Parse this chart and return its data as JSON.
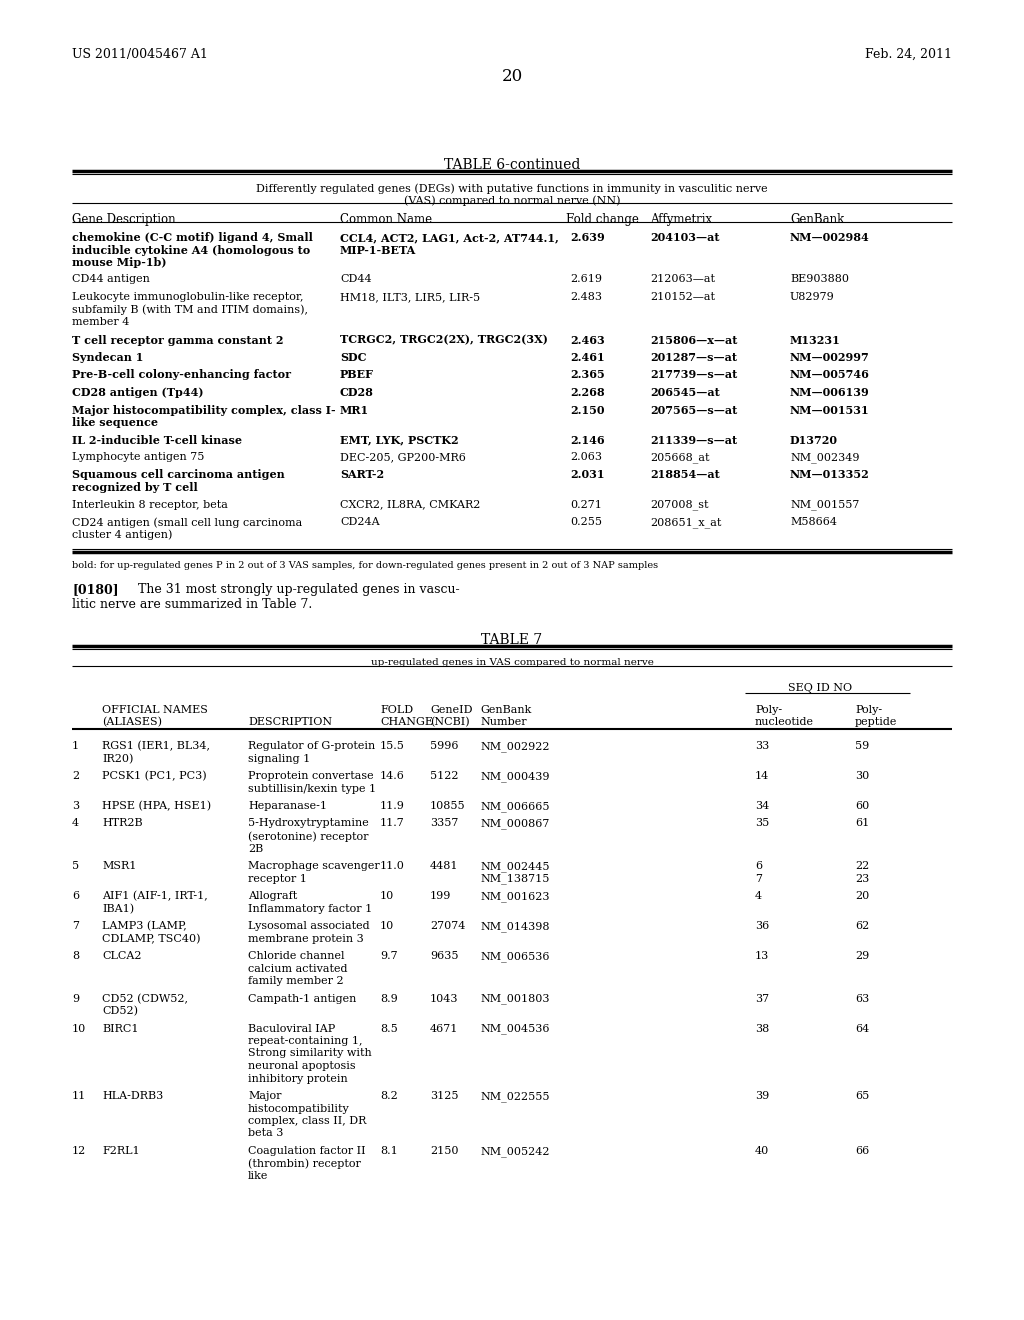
{
  "patent_number": "US 2011/0045467 A1",
  "patent_date": "Feb. 24, 2011",
  "page_number": "20",
  "table6_title": "TABLE 6-continued",
  "table6_subtitle1": "Differently regulated genes (DEGs) with putative functions in immunity in vasculitic nerve",
  "table6_subtitle2": "(VAS) compared to normal nerve (NN)",
  "table6_headers": [
    "Gene Description",
    "Common Name",
    "Fold change",
    "Affymetrix",
    "GenBank"
  ],
  "table6_rows": [
    {
      "gene": "chemokine (C-C motif) ligand 4, Small\ninducible cytokine A4 (homologous to\nmouse Mip-1b)",
      "common": "CCL4, ACT2, LAG1, Act-2, AT744.1,\nMIP-1-BETA",
      "fold": "2.639",
      "affy": "204103—at",
      "genbank": "NM—002984",
      "bold": true
    },
    {
      "gene": "CD44 antigen",
      "common": "CD44",
      "fold": "2.619",
      "affy": "212063—at",
      "genbank": "BE903880",
      "bold": false
    },
    {
      "gene": "Leukocyte immunoglobulin-like receptor,\nsubfamily B (with TM and ITIM domains),\nmember 4",
      "common": "HM18, ILT3, LIR5, LIR-5",
      "fold": "2.483",
      "affy": "210152—at",
      "genbank": "U82979",
      "bold": false
    },
    {
      "gene": "T cell receptor gamma constant 2",
      "common": "TCRGC2, TRGC2(2X), TRGC2(3X)",
      "fold": "2.463",
      "affy": "215806—x—at",
      "genbank": "M13231",
      "bold": true
    },
    {
      "gene": "Syndecan 1",
      "common": "SDC",
      "fold": "2.461",
      "affy": "201287—s—at",
      "genbank": "NM—002997",
      "bold": true
    },
    {
      "gene": "Pre-B-cell colony-enhancing factor",
      "common": "PBEF",
      "fold": "2.365",
      "affy": "217739—s—at",
      "genbank": "NM—005746",
      "bold": true
    },
    {
      "gene": "CD28 antigen (Tp44)",
      "common": "CD28",
      "fold": "2.268",
      "affy": "206545—at",
      "genbank": "NM—006139",
      "bold": true
    },
    {
      "gene": "Major histocompatibility complex, class I-\nlike sequence",
      "common": "MR1",
      "fold": "2.150",
      "affy": "207565—s—at",
      "genbank": "NM—001531",
      "bold": true
    },
    {
      "gene": "IL 2-inducible T-cell kinase",
      "common": "EMT, LYK, PSCTK2",
      "fold": "2.146",
      "affy": "211339—s—at",
      "genbank": "D13720",
      "bold": true
    },
    {
      "gene": "Lymphocyte antigen 75",
      "common": "DEC-205, GP200-MR6",
      "fold": "2.063",
      "affy": "205668_at",
      "genbank": "NM_002349",
      "bold": false
    },
    {
      "gene": "Squamous cell carcinoma antigen\nrecognized by T cell",
      "common": "SART-2",
      "fold": "2.031",
      "affy": "218854—at",
      "genbank": "NM—013352",
      "bold": true
    },
    {
      "gene": "Interleukin 8 receptor, beta",
      "common": "CXCR2, IL8RA, CMKAR2",
      "fold": "0.271",
      "affy": "207008_st",
      "genbank": "NM_001557",
      "bold": false
    },
    {
      "gene": "CD24 antigen (small cell lung carcinoma\ncluster 4 antigen)",
      "common": "CD24A",
      "fold": "0.255",
      "affy": "208651_x_at",
      "genbank": "M58664",
      "bold": false
    }
  ],
  "table6_footnote": "bold: for up-regulated genes P in 2 out of 3 VAS samples, for down-regulated genes present in 2 out of 3 NAP samples",
  "paragraph_0180": "[0180]   The 31 most strongly up-regulated genes in vascu-\nlitic nerve are summarized in Table 7.",
  "table7_title": "TABLE 7",
  "table7_subtitle": "up-regulated genes in VAS compared to normal nerve",
  "table7_seqid": "SEQ ID NO",
  "table7_rows": [
    {
      "num": "1",
      "name": "RGS1 (IER1, BL34,\nIR20)",
      "desc": "Regulator of G-protein\nsignaling 1",
      "fold": "15.5",
      "geneid": "5996",
      "genbank": "NM_002922",
      "poly_n": "33",
      "poly_p": "59"
    },
    {
      "num": "2",
      "name": "PCSK1 (PC1, PC3)",
      "desc": "Proprotein convertase\nsubtillisin/kexin type 1",
      "fold": "14.6",
      "geneid": "5122",
      "genbank": "NM_000439",
      "poly_n": "14",
      "poly_p": "30"
    },
    {
      "num": "3",
      "name": "HPSE (HPA, HSE1)",
      "desc": "Heparanase-1",
      "fold": "11.9",
      "geneid": "10855",
      "genbank": "NM_006665",
      "poly_n": "34",
      "poly_p": "60"
    },
    {
      "num": "4",
      "name": "HTR2B",
      "desc": "5-Hydroxytryptamine\n(serotonine) receptor\n2B",
      "fold": "11.7",
      "geneid": "3357",
      "genbank": "NM_000867",
      "poly_n": "35",
      "poly_p": "61"
    },
    {
      "num": "5",
      "name": "MSR1",
      "desc": "Macrophage scavenger\nreceptor 1",
      "fold": "11.0",
      "geneid": "4481",
      "genbank": "NM_002445\nNM_138715",
      "poly_n": "6\n7",
      "poly_p": "22\n23"
    },
    {
      "num": "6",
      "name": "AIF1 (AIF-1, IRT-1,\nIBA1)",
      "desc": "Allograft\nInflammatory factor 1",
      "fold": "10",
      "geneid": "199",
      "genbank": "NM_001623",
      "poly_n": "4",
      "poly_p": "20"
    },
    {
      "num": "7",
      "name": "LAMP3 (LAMP,\nCDLAMP, TSC40)",
      "desc": "Lysosomal associated\nmembrane protein 3",
      "fold": "10",
      "geneid": "27074",
      "genbank": "NM_014398",
      "poly_n": "36",
      "poly_p": "62"
    },
    {
      "num": "8",
      "name": "CLCA2",
      "desc": "Chloride channel\ncalcium activated\nfamily member 2",
      "fold": "9.7",
      "geneid": "9635",
      "genbank": "NM_006536",
      "poly_n": "13",
      "poly_p": "29"
    },
    {
      "num": "9",
      "name": "CD52 (CDW52,\nCD52)",
      "desc": "Campath-1 antigen",
      "fold": "8.9",
      "geneid": "1043",
      "genbank": "NM_001803",
      "poly_n": "37",
      "poly_p": "63"
    },
    {
      "num": "10",
      "name": "BIRC1",
      "desc": "Baculoviral IAP\nrepeat-containing 1,\nStrong similarity with\nneuronal apoptosis\ninhibitory protein",
      "fold": "8.5",
      "geneid": "4671",
      "genbank": "NM_004536",
      "poly_n": "38",
      "poly_p": "64"
    },
    {
      "num": "11",
      "name": "HLA-DRB3",
      "desc": "Major\nhistocompatibility\ncomplex, class II, DR\nbeta 3",
      "fold": "8.2",
      "geneid": "3125",
      "genbank": "NM_022555",
      "poly_n": "39",
      "poly_p": "65"
    },
    {
      "num": "12",
      "name": "F2RL1",
      "desc": "Coagulation factor II\n(thrombin) receptor\nlike",
      "fold": "8.1",
      "geneid": "2150",
      "genbank": "NM_005242",
      "poly_n": "40",
      "poly_p": "66"
    }
  ]
}
